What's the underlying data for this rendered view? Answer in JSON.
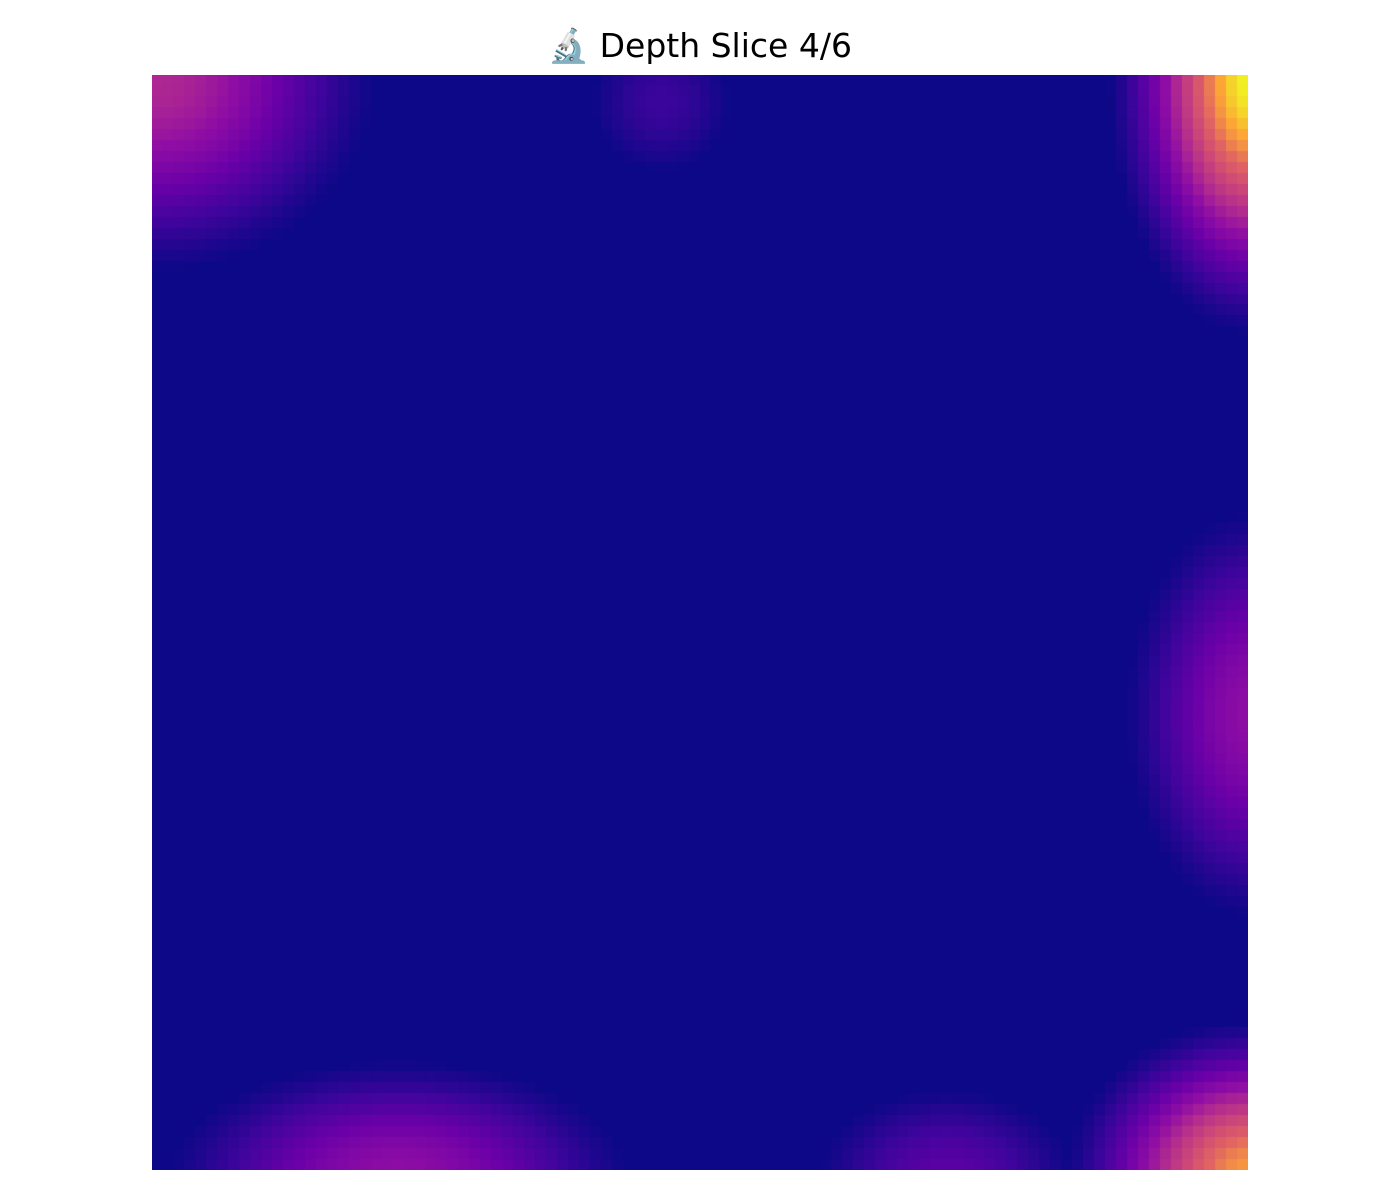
{
  "chart_data": {
    "type": "heatmap",
    "title": "🔬 Depth Slice 4/6",
    "colormap": "plasma",
    "axes_visible": false,
    "grid": false,
    "legend": "none",
    "color_range": [
      0,
      1
    ],
    "grid_size": [
      100,
      100
    ],
    "background_level": 0.0,
    "hotspots": [
      {
        "label": "top-right edge",
        "cx": 100,
        "cy": 0,
        "value": 1.0
      },
      {
        "label": "top-left corner",
        "cx": 0,
        "cy": 0,
        "value": 0.55
      },
      {
        "label": "top-center",
        "cx": 46,
        "cy": 2,
        "value": 0.22
      },
      {
        "label": "right edge",
        "cx": 100,
        "cy": 58,
        "value": 0.45
      },
      {
        "label": "bottom-left",
        "cx": 22,
        "cy": 100,
        "value": 0.45
      },
      {
        "label": "bottom-center",
        "cx": 72,
        "cy": 100,
        "value": 0.3
      },
      {
        "label": "bottom-right corner",
        "cx": 100,
        "cy": 100,
        "value": 0.88
      }
    ]
  }
}
